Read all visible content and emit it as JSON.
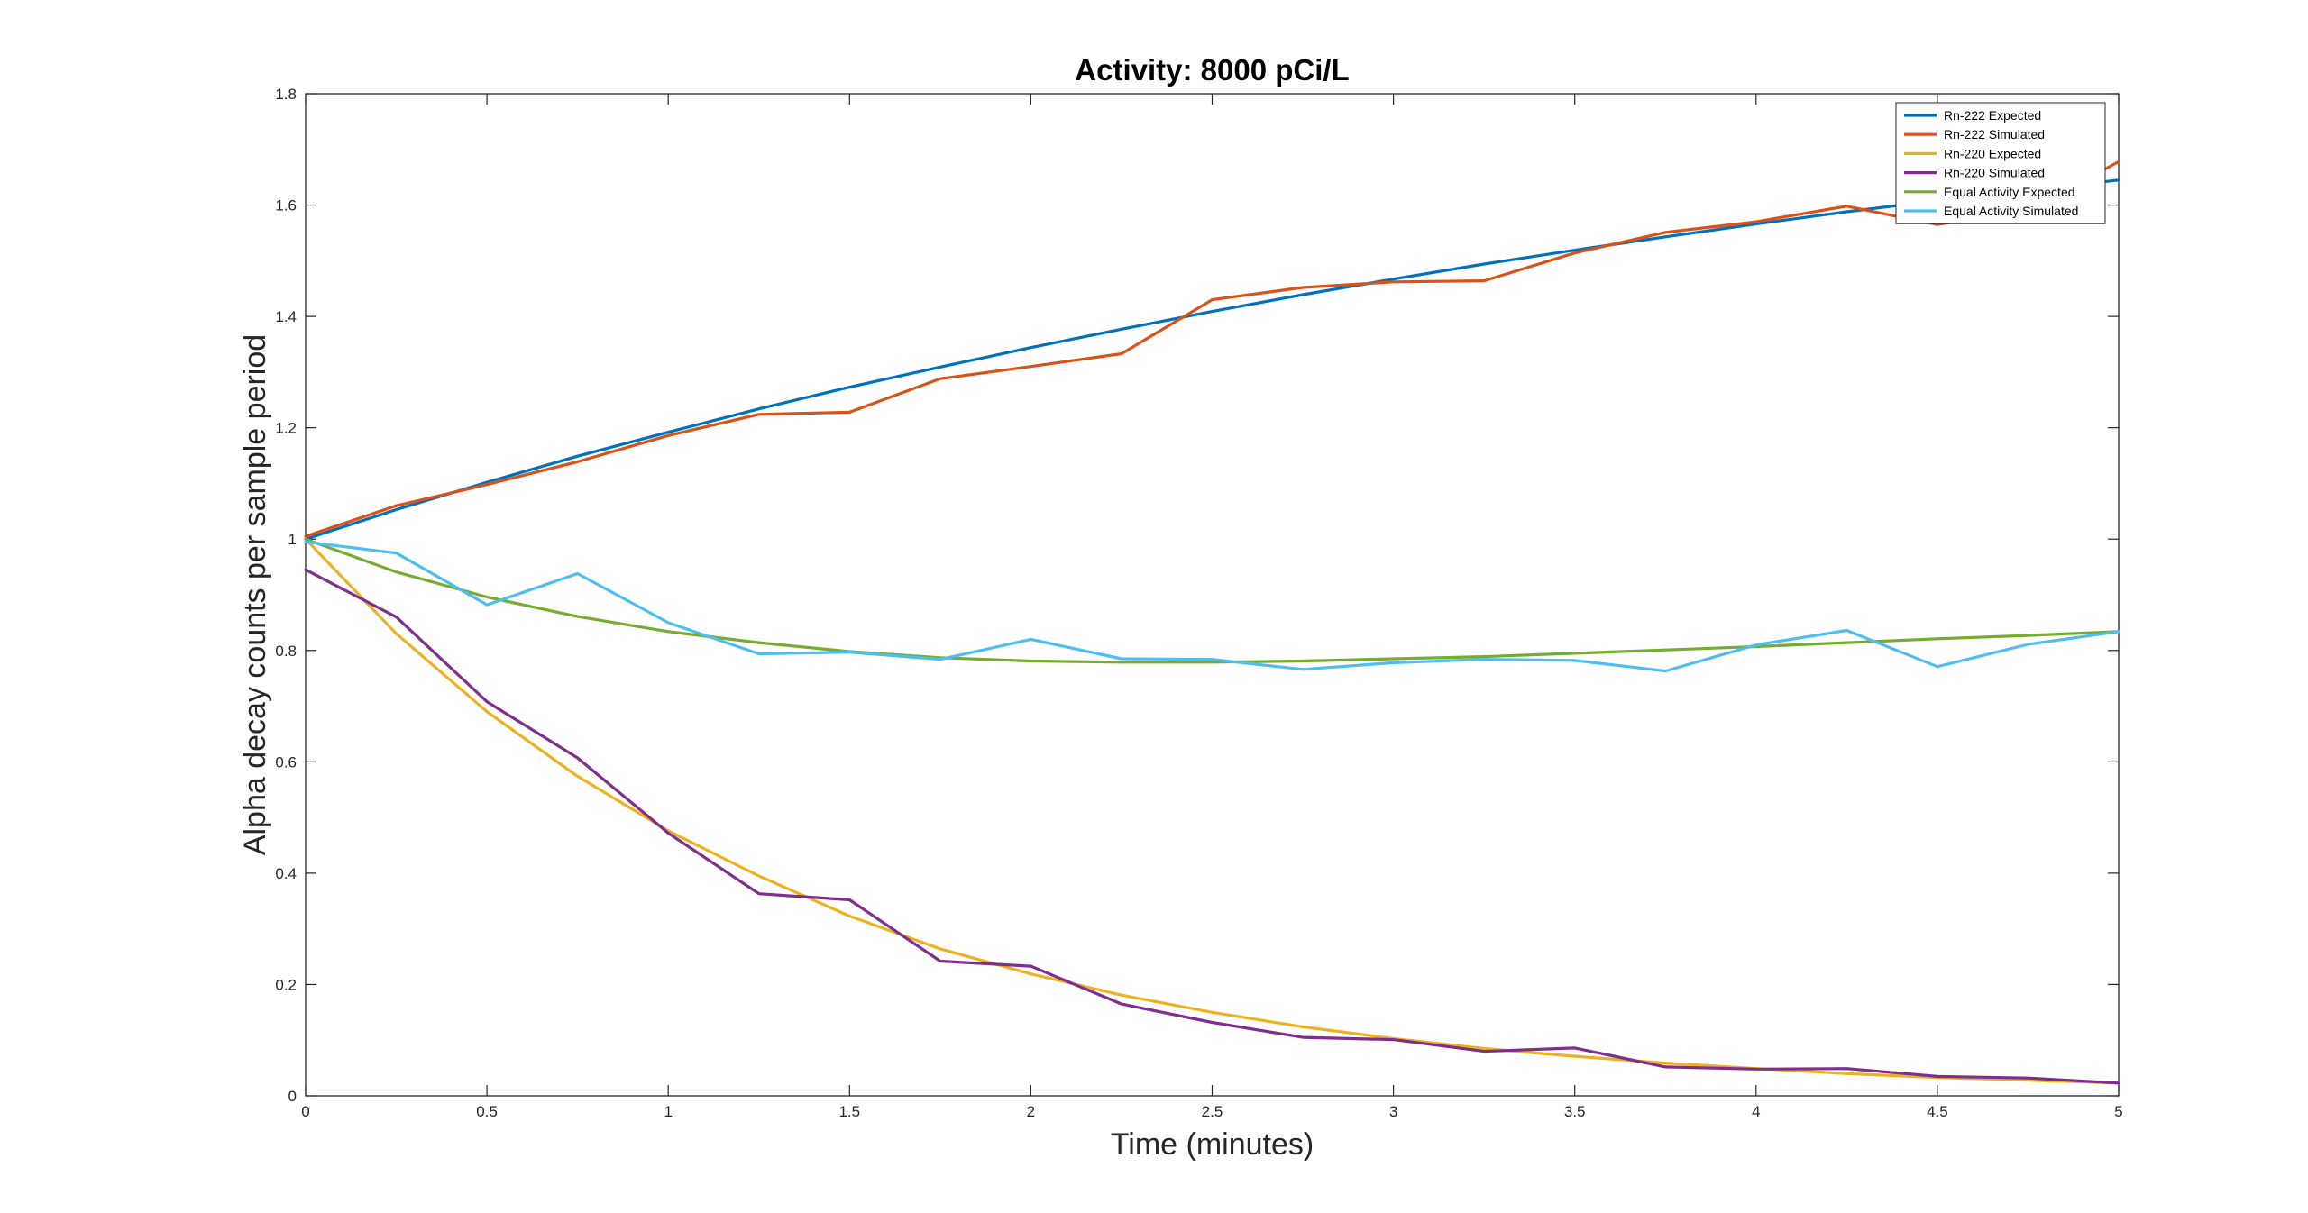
{
  "chart_data": {
    "type": "line",
    "title": "Activity: 8000 pCi/L",
    "xlabel": "Time (minutes)",
    "ylabel": "Alpha decay counts per sample period",
    "xlim": [
      0,
      5
    ],
    "ylim": [
      0,
      1.8
    ],
    "xticks": [
      0,
      0.5,
      1,
      1.5,
      2,
      2.5,
      3,
      3.5,
      4,
      4.5,
      5
    ],
    "yticks": [
      0,
      0.2,
      0.4,
      0.6,
      0.8,
      1,
      1.2,
      1.4,
      1.6,
      1.8
    ],
    "xtick_labels": [
      "0",
      "0.5",
      "1",
      "1.5",
      "2",
      "2.5",
      "3",
      "3.5",
      "4",
      "4.5",
      "5"
    ],
    "ytick_labels": [
      "0",
      "0.2",
      "0.4",
      "0.6",
      "0.8",
      "1",
      "1.2",
      "1.4",
      "1.6",
      "1.8"
    ],
    "grid": false,
    "legend_position": "top-right",
    "x": [
      0,
      0.25,
      0.5,
      0.75,
      1,
      1.25,
      1.5,
      1.75,
      2,
      2.25,
      2.5,
      2.75,
      3,
      3.25,
      3.5,
      3.75,
      4,
      4.25,
      4.5,
      4.75,
      5
    ],
    "series": [
      {
        "name": "Rn-222 Expected",
        "color": "#0072BD",
        "values": [
          1.0,
          1.053,
          1.102,
          1.149,
          1.192,
          1.234,
          1.273,
          1.309,
          1.344,
          1.377,
          1.409,
          1.439,
          1.467,
          1.494,
          1.519,
          1.543,
          1.566,
          1.588,
          1.608,
          1.627,
          1.645
        ]
      },
      {
        "name": "Rn-222 Simulated",
        "color": "#D95319",
        "values": [
          1.005,
          1.06,
          1.098,
          1.139,
          1.186,
          1.224,
          1.228,
          1.288,
          1.31,
          1.333,
          1.43,
          1.452,
          1.462,
          1.464,
          1.514,
          1.551,
          1.57,
          1.598,
          1.565,
          1.59,
          1.678
        ]
      },
      {
        "name": "Rn-220 Expected",
        "color": "#EDB120",
        "values": [
          1.0,
          0.83,
          0.69,
          0.574,
          0.476,
          0.395,
          0.323,
          0.264,
          0.219,
          0.181,
          0.15,
          0.124,
          0.103,
          0.085,
          0.071,
          0.059,
          0.049,
          0.04,
          0.033,
          0.028,
          0.023
        ]
      },
      {
        "name": "Rn-220 Simulated",
        "color": "#7E2F8E",
        "values": [
          0.945,
          0.86,
          0.708,
          0.607,
          0.472,
          0.363,
          0.352,
          0.242,
          0.233,
          0.165,
          0.132,
          0.105,
          0.101,
          0.08,
          0.086,
          0.052,
          0.048,
          0.049,
          0.035,
          0.032,
          0.023
        ]
      },
      {
        "name": "Equal Activity Expected",
        "color": "#77AC30",
        "values": [
          1.0,
          0.941,
          0.896,
          0.861,
          0.834,
          0.814,
          0.798,
          0.787,
          0.781,
          0.779,
          0.779,
          0.781,
          0.785,
          0.789,
          0.795,
          0.801,
          0.807,
          0.814,
          0.821,
          0.827,
          0.834
        ]
      },
      {
        "name": "Equal Activity Simulated",
        "color": "#4DBEEE",
        "values": [
          0.995,
          0.975,
          0.882,
          0.938,
          0.85,
          0.794,
          0.797,
          0.784,
          0.82,
          0.785,
          0.784,
          0.766,
          0.778,
          0.784,
          0.782,
          0.763,
          0.81,
          0.836,
          0.771,
          0.811,
          0.834
        ]
      }
    ]
  }
}
